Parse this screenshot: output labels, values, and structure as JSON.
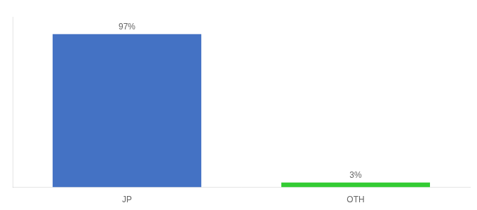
{
  "chart_data": {
    "type": "bar",
    "categories": [
      "JP",
      "OTH"
    ],
    "values": [
      97,
      3
    ],
    "colors": [
      "#4472c4",
      "#33cc33"
    ],
    "value_labels": [
      "97%",
      "3%"
    ],
    "data_labels": true,
    "ylim": [
      0,
      108
    ],
    "grid": false,
    "tick_labels": "x"
  }
}
